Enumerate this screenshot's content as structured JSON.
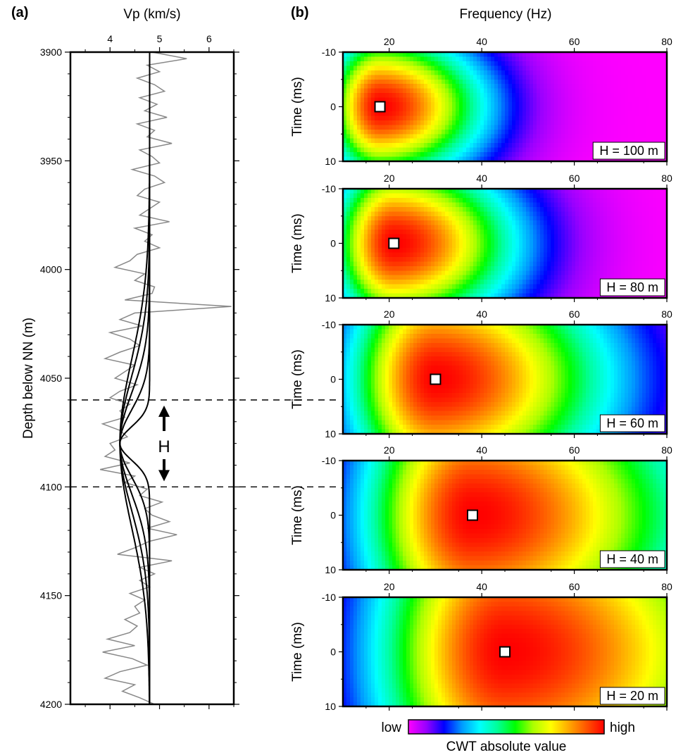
{
  "panel_a_label": "(a)",
  "panel_b_label": "(b)",
  "chart_data": [
    {
      "type": "line",
      "xlabel": "Vp (km/s)",
      "ylabel": "Depth below NN (m)",
      "xlim": [
        3.2,
        6.5
      ],
      "ylim": [
        3900,
        4200
      ],
      "y_inverted": true,
      "xticks": [
        "4",
        "5",
        "6"
      ],
      "xtick_values": [
        4,
        5,
        6
      ],
      "yticks": [
        "3900",
        "3950",
        "4000",
        "4050",
        "4100",
        "4150",
        "4200"
      ],
      "ytick_values": [
        3900,
        3950,
        4000,
        4050,
        4100,
        4150,
        4200
      ],
      "background_vp": 4.8,
      "low_velocity_vp": 4.2,
      "center_depth": 4080,
      "gaussian_widths": [
        20,
        40,
        60,
        80,
        100
      ],
      "dashed_depths": [
        4060,
        4100
      ],
      "annotation": "H",
      "well_log": {
        "color": "#888888",
        "depth": [
          3900,
          3903,
          3906,
          3909,
          3912,
          3915,
          3918,
          3921,
          3924,
          3927,
          3930,
          3933,
          3936,
          3939,
          3942,
          3945,
          3948,
          3951,
          3954,
          3957,
          3960,
          3963,
          3966,
          3969,
          3972,
          3975,
          3978,
          3981,
          3984,
          3987,
          3990,
          3993,
          3996,
          3999,
          4002,
          4005,
          4008,
          4011,
          4014,
          4017,
          4020,
          4023,
          4026,
          4029,
          4032,
          4035,
          4038,
          4041,
          4044,
          4047,
          4050,
          4053,
          4056,
          4059,
          4062,
          4065,
          4068,
          4071,
          4074,
          4077,
          4080,
          4083,
          4086,
          4089,
          4092,
          4095,
          4098,
          4101,
          4104,
          4107,
          4110,
          4113,
          4116,
          4119,
          4122,
          4125,
          4128,
          4131,
          4134,
          4137,
          4140,
          4143,
          4146,
          4149,
          4152,
          4155,
          4158,
          4161,
          4164,
          4167,
          4170,
          4173,
          4176,
          4179,
          4182,
          4185,
          4188,
          4191,
          4194,
          4197,
          4200
        ],
        "vp": [
          4.85,
          5.55,
          4.75,
          5.0,
          4.55,
          4.9,
          5.1,
          4.6,
          4.95,
          4.7,
          5.15,
          4.55,
          4.9,
          4.75,
          5.25,
          4.6,
          4.85,
          5.0,
          4.45,
          4.9,
          5.1,
          4.7,
          4.55,
          5.0,
          4.8,
          4.6,
          5.2,
          4.5,
          4.85,
          4.7,
          5.0,
          4.55,
          4.4,
          4.1,
          4.7,
          4.5,
          4.9,
          4.85,
          4.3,
          6.45,
          4.5,
          4.2,
          4.65,
          4.0,
          4.4,
          4.6,
          4.2,
          3.9,
          4.5,
          4.3,
          4.1,
          4.55,
          4.2,
          4.0,
          4.4,
          4.2,
          4.3,
          3.85,
          4.2,
          4.35,
          4.0,
          4.1,
          3.9,
          4.4,
          3.8,
          4.5,
          4.3,
          4.75,
          4.6,
          5.05,
          4.7,
          4.85,
          5.2,
          4.75,
          5.35,
          4.8,
          4.5,
          4.15,
          5.25,
          4.6,
          4.9,
          4.6,
          4.8,
          4.4,
          4.7,
          4.5,
          4.6,
          4.3,
          4.55,
          4.4,
          3.95,
          4.5,
          3.85,
          4.45,
          4.75,
          4.2,
          3.9,
          4.5,
          4.25,
          4.6,
          4.9
        ]
      }
    },
    {
      "type": "heatmap",
      "top_label": "Frequency (Hz)",
      "ylabel": "Time (ms)",
      "xlim": [
        10,
        80
      ],
      "ylim": [
        -10,
        10
      ],
      "xticks": [
        "20",
        "40",
        "60",
        "80"
      ],
      "xtick_values": [
        20,
        40,
        60,
        80
      ],
      "yticks": [
        "-10",
        "0",
        "10"
      ],
      "ytick_values": [
        -10,
        0,
        10
      ],
      "colorscale": [
        "#ff00ff",
        "#9900ff",
        "#0000ff",
        "#0099ff",
        "#00ffff",
        "#00ff99",
        "#00ff00",
        "#aaff00",
        "#ffff00",
        "#ffaa00",
        "#ff5500",
        "#ff0000"
      ],
      "panels": [
        {
          "label": "H = 100 m",
          "peak_freq": 18,
          "peak_time": 0
        },
        {
          "label": "H = 80 m",
          "peak_freq": 21,
          "peak_time": 0
        },
        {
          "label": "H = 60 m",
          "peak_freq": 30,
          "peak_time": 0
        },
        {
          "label": "H = 40 m",
          "peak_freq": 38,
          "peak_time": 0
        },
        {
          "label": "H = 20 m",
          "peak_freq": 45,
          "peak_time": 0
        }
      ],
      "colorbar": {
        "low": "low",
        "high": "high",
        "title": "CWT absolute value"
      }
    }
  ]
}
